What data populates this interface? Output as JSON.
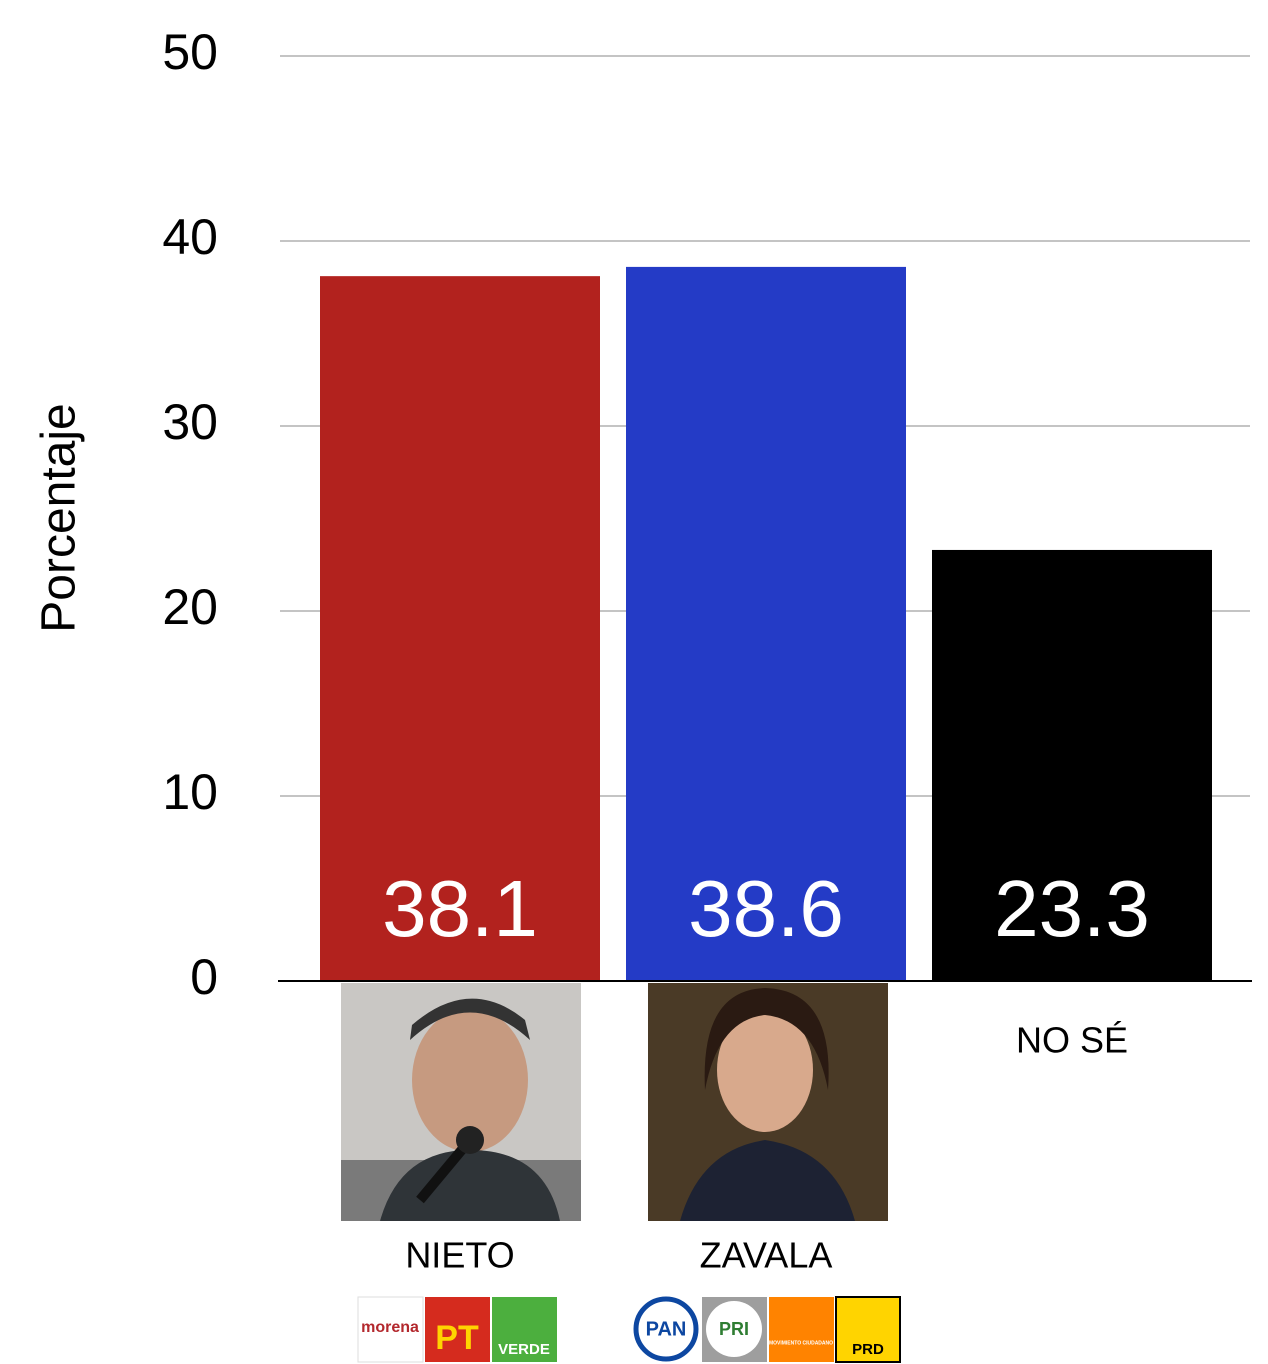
{
  "chart_data": {
    "type": "bar",
    "y_label": "Porcentaje",
    "categories": [
      "NIETO",
      "ZAVALA",
      "NO SÉ"
    ],
    "values": [
      38.1,
      38.6,
      23.3
    ],
    "colors": [
      "#b2221e",
      "#243bc6",
      "#000000"
    ],
    "ylim": [
      0,
      50
    ],
    "yticks": [
      0,
      10,
      20,
      30,
      40,
      50
    ],
    "grid": true,
    "logos": [
      [
        "morena",
        "PT",
        "VERDE"
      ],
      [
        "PAN",
        "PRI",
        "MOVIMIENTO CIUDADANO",
        "PRD"
      ]
    ]
  }
}
